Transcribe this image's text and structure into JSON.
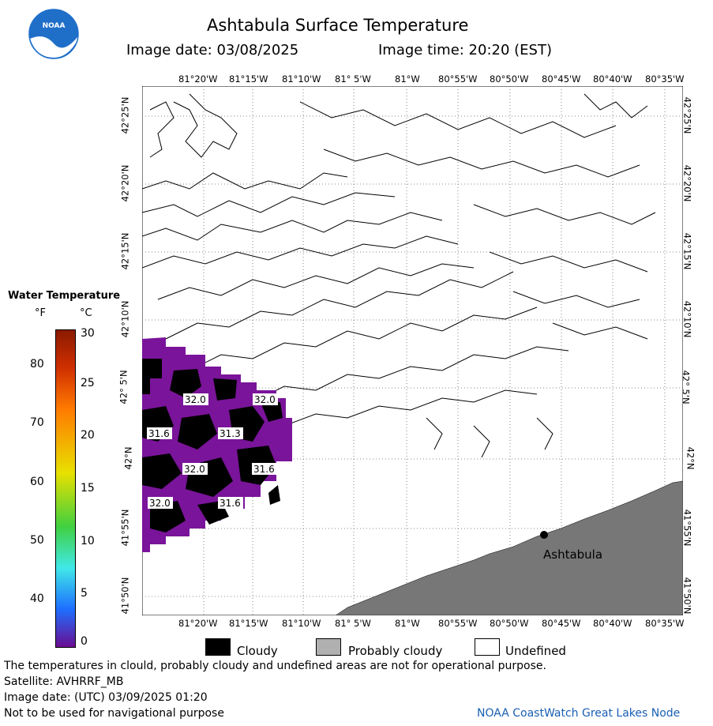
{
  "title": "Ashtabula Surface Temperature",
  "image_date": "Image date: 03/08/2025",
  "image_time": "Image time: 20:20 (EST)",
  "logo_text": "NOAA",
  "legend": {
    "title": "Water Temperature",
    "unit_f": "°F",
    "unit_c": "°C",
    "f_ticks": [
      "80",
      "70",
      "60",
      "50",
      "40"
    ],
    "c_ticks": [
      "30",
      "25",
      "20",
      "15",
      "10",
      "5",
      "0"
    ],
    "colors": {
      "top": "#8b1a00",
      "orange": "#ff7b00",
      "yellow": "#e8e000",
      "green": "#40d040",
      "cyan": "#40e8e8",
      "blue": "#1e6fff",
      "bottom": "#6a0d91"
    }
  },
  "lon_labels": [
    "81°20'W",
    "81°15'W",
    "81°10'W",
    "81° 5'W",
    "81°W",
    "80°55'W",
    "80°50'W",
    "80°45'W",
    "80°40'W",
    "80°35'W"
  ],
  "lat_labels": [
    "42°25'N",
    "42°20'N",
    "42°15'N",
    "42°10'N",
    "42° 5'N",
    "42°N",
    "41°55'N",
    "41°50'N"
  ],
  "temp_labels": [
    "32.0",
    "32.0",
    "31.6",
    "31.3",
    "32.0",
    "31.6",
    "32.0",
    "31.6"
  ],
  "city": "Ashtabula",
  "categories": [
    "Cloudy",
    "Probably cloudy",
    "Undefined"
  ],
  "category_colors": {
    "cloudy": "#000000",
    "probably_cloudy": "#b0b0b0",
    "undefined": "#ffffff",
    "land": "#777777",
    "water": "#7a149a"
  },
  "footer": {
    "note": "The temperatures in clould, probably cloudy and undefined areas are not for operational purpose.",
    "satellite": "Satellite: AVHRRF_MB",
    "utc_date": "Image date: (UTC) 03/09/2025  01:20",
    "nav": "Not to be used for navigational purpose",
    "credit": "NOAA CoastWatch Great Lakes Node"
  }
}
